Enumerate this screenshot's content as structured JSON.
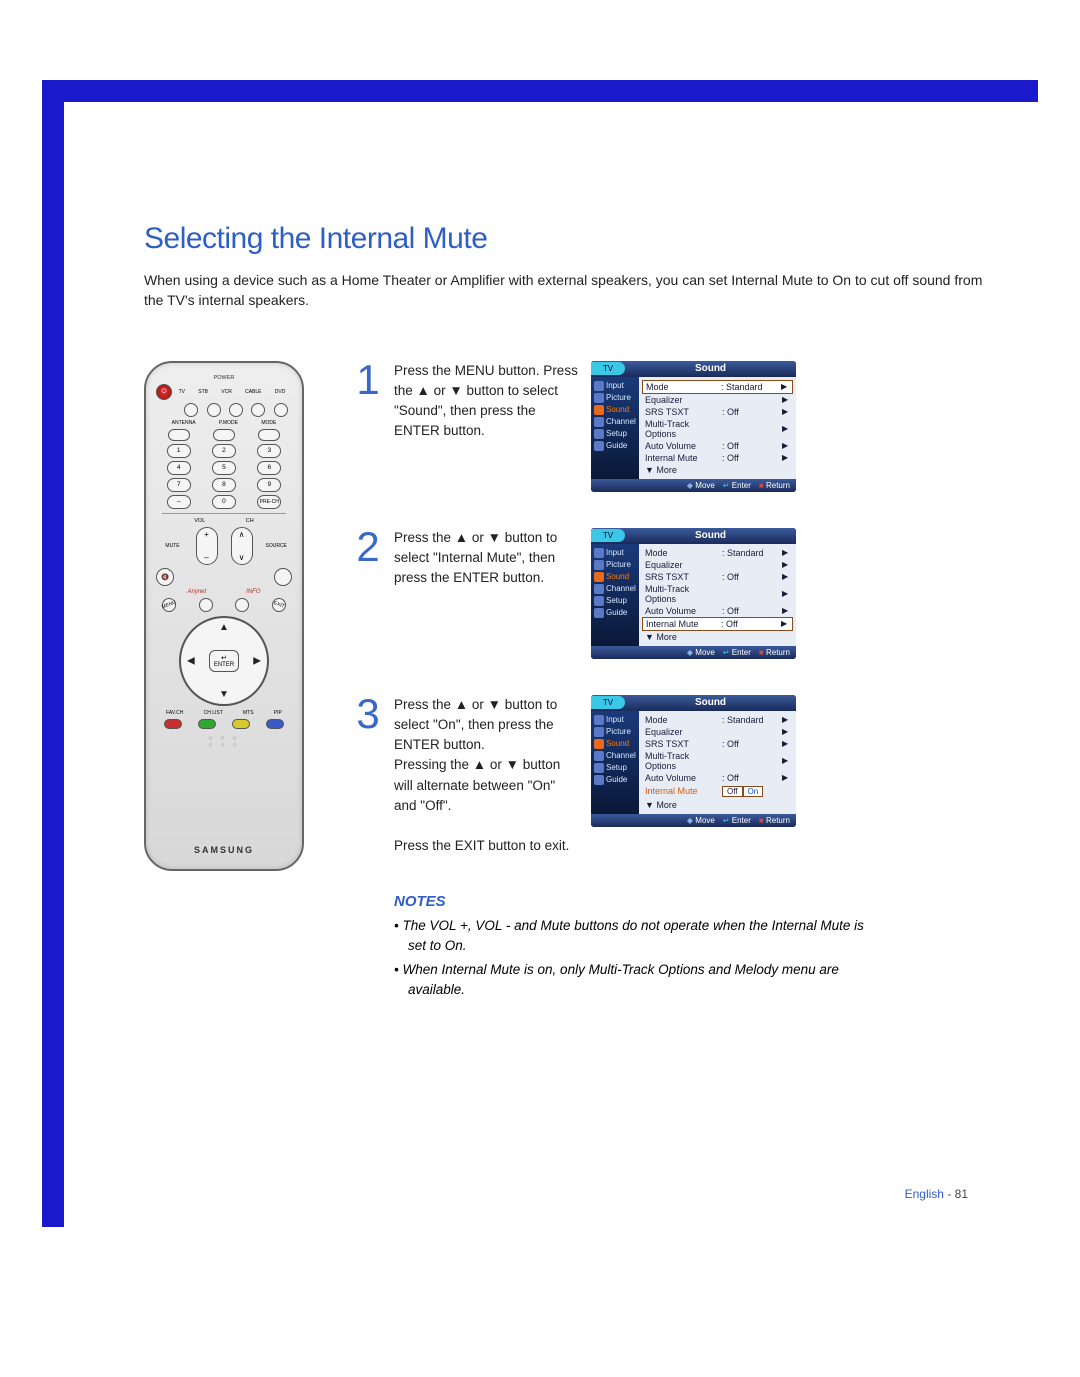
{
  "page": {
    "title": "Selecting the Internal Mute",
    "intro": "When using a device such as a Home Theater or Amplifier with external speakers, you can set Internal Mute to On to cut off sound from the TV's internal speakers.",
    "footer_lang": "English",
    "footer_page": "- 81"
  },
  "steps": [
    {
      "num": "1",
      "text": "Press the MENU button. Press the ▲ or ▼ button to select \"Sound\", then press the ENTER button."
    },
    {
      "num": "2",
      "text": "Press the ▲ or ▼ button to select \"Internal Mute\", then press the ENTER button."
    },
    {
      "num": "3",
      "text": "Press the ▲ or ▼ button to select \"On\", then press the ENTER button.\nPressing the ▲ or ▼ button will alternate between \"On\" and \"Off\".\n\nPress the EXIT button to exit."
    }
  ],
  "notes": {
    "heading": "NOTES",
    "items": [
      "The VOL +, VOL - and Mute buttons do not operate when the Internal Mute is set to On.",
      "When Internal Mute is on, only Multi-Track Options and Melody menu are available."
    ]
  },
  "osd": {
    "tv_label": "TV",
    "title": "Sound",
    "side": [
      "Input",
      "Picture",
      "Sound",
      "Channel",
      "Setup",
      "Guide"
    ],
    "side_highlight": "Sound",
    "rows": [
      {
        "k": "Mode",
        "v": ": Standard",
        "arrow": true
      },
      {
        "k": "Equalizer",
        "v": "",
        "arrow": true
      },
      {
        "k": "SRS TSXT",
        "v": ": Off",
        "arrow": true
      },
      {
        "k": "Multi-Track Options",
        "v": "",
        "arrow": true
      },
      {
        "k": "Auto Volume",
        "v": ": Off",
        "arrow": true
      },
      {
        "k": "Internal Mute",
        "v": ": Off",
        "arrow": true
      },
      {
        "k": "▼ More",
        "v": "",
        "arrow": false
      }
    ],
    "footer": {
      "move": "Move",
      "enter": "Enter",
      "return": "Return"
    },
    "screen1_boxed": "Mode",
    "screen2_boxed": "Internal Mute",
    "screen3": {
      "mute_label": "Internal Mute",
      "options": [
        "Off",
        "On"
      ],
      "selected": "On"
    }
  },
  "remote": {
    "labels": {
      "power": "POWER",
      "device_row": [
        "TV",
        "STB",
        "VCR",
        "CABLE",
        "DVD"
      ],
      "top_oval": [
        "ANTENNA",
        "P.MODE",
        "MODE"
      ],
      "prech": "PRE-CH",
      "vol": "VOL",
      "ch": "CH",
      "mute": "MUTE",
      "source": "SOURCE",
      "info": "INFO",
      "enter": "ENTER",
      "bottom": [
        "FAV.CH",
        "CH LIST",
        "MTS",
        "PIP"
      ]
    },
    "brand": "SAMSUNG"
  },
  "colors": {
    "border": "#1a1acc",
    "heading": "#2f5ec4",
    "step_num": "#3a68c8",
    "osd_highlight": "#ff7a00",
    "osd_bg": "#0a1028",
    "osd_panel": "#e8edf5"
  }
}
